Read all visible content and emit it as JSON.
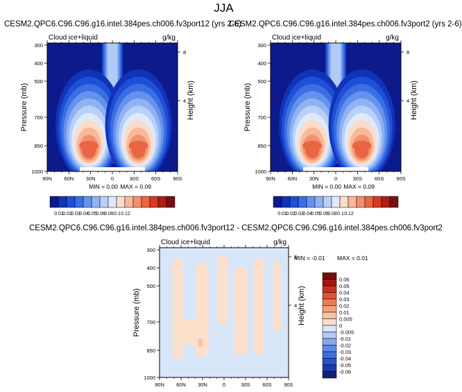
{
  "page": {
    "title": "JJA"
  },
  "colors": {
    "seq_levels": [
      "#0c1a8c",
      "#1133b8",
      "#1f4fd6",
      "#3a6fe3",
      "#6592ec",
      "#8fb2f2",
      "#b9d0f7",
      "#deeafb",
      "#fbdcc8",
      "#f8b899",
      "#f2916d",
      "#e86644",
      "#d63a22",
      "#ad1e14",
      "#7a0f0f"
    ],
    "diff_levels": [
      "#1a2070",
      "#1d3aa8",
      "#2752cf",
      "#3f6de0",
      "#5f8aea",
      "#87a8f0",
      "#b3c8f5",
      "#d8e6fa",
      "#fce0cc",
      "#f9c2a4",
      "#f6a07c",
      "#ef7a56",
      "#e45234",
      "#cc2f1c",
      "#a31711",
      "#7a0c0c"
    ]
  },
  "chart_data": [
    {
      "type": "heatmap",
      "panel": "left",
      "title": "CESM2.QPC6.C96.C96.g16.intel.384pes.ch006.fv3port12 (yrs 2-6)",
      "variable_label": "Cloud ice+liquid",
      "units": "g/kg",
      "xlabel": "",
      "ylabel": "Pressure (mb)",
      "y2label": "Height (km)",
      "x_ticks": [
        "90N",
        "60N",
        "30N",
        "0",
        "30S",
        "60S",
        "90S"
      ],
      "x_values": [
        90,
        60,
        30,
        0,
        -30,
        -60,
        -90
      ],
      "y_ticks": [
        "300",
        "400",
        "500",
        "700",
        "850",
        "1000"
      ],
      "y_values": [
        300,
        400,
        500,
        700,
        850,
        1000
      ],
      "y2_ticks": [
        "8",
        "4"
      ],
      "y2_values": [
        8,
        4
      ],
      "ylim": [
        1000,
        300
      ],
      "stats": {
        "min_label": "MIN =",
        "min": "0.00",
        "max_label": "MAX =",
        "max": "0.09"
      },
      "max_value": 0.09,
      "max_location": [
        [
          -35,
          845
        ],
        [
          35,
          845
        ]
      ]
    },
    {
      "type": "heatmap",
      "panel": "right",
      "title": "CESM2.QPC6.C96.C96.g16.intel.384pes.ch006.fv3port2 (yrs 2-6)",
      "variable_label": "Cloud ice+liquid",
      "units": "g/kg",
      "xlabel": "",
      "ylabel": "Pressure (mb)",
      "y2label": "Height (km)",
      "x_ticks": [
        "90N",
        "60N",
        "30N",
        "0",
        "30S",
        "60S",
        "90S"
      ],
      "x_values": [
        90,
        60,
        30,
        0,
        -30,
        -60,
        -90
      ],
      "y_ticks": [
        "300",
        "400",
        "500",
        "700",
        "850",
        "1000"
      ],
      "y_values": [
        300,
        400,
        500,
        700,
        850,
        1000
      ],
      "y2_ticks": [
        "8",
        "4"
      ],
      "y2_values": [
        8,
        4
      ],
      "ylim": [
        1000,
        300
      ],
      "stats": {
        "min_label": "MIN =",
        "min": "0.00",
        "max_label": "MAX =",
        "max": "0.09"
      },
      "max_value": 0.09,
      "max_location": [
        [
          -35,
          845
        ],
        [
          35,
          845
        ]
      ]
    },
    {
      "type": "heatmap",
      "panel": "difference",
      "title": "CESM2.QPC6.C96.C96.g16.intel.384pes.ch006.fv3port12 - CESM2.QPC6.C96.C96.g16.intel.384pes.ch006.fv3port2",
      "variable_label": "Cloud ice+liquid",
      "units": "g/kg",
      "xlabel": "",
      "ylabel": "Pressure (mb)",
      "y2label": "Height (km)",
      "x_ticks": [
        "90N",
        "60N",
        "30N",
        "0",
        "30S",
        "60S",
        "90S"
      ],
      "x_values": [
        90,
        60,
        30,
        0,
        -30,
        -60,
        -90
      ],
      "y_ticks": [
        "300",
        "400",
        "500",
        "700",
        "850",
        "1000"
      ],
      "y_values": [
        300,
        400,
        500,
        700,
        850,
        1000
      ],
      "y2_ticks": [
        "8",
        "4"
      ],
      "y2_values": [
        8,
        4
      ],
      "ylim": [
        1000,
        300
      ],
      "stats": {
        "min_label": "MIN =",
        "min": "-0.01",
        "max_label": "MAX =",
        "max": "0.01"
      }
    },
    {
      "type": "colorbar",
      "name": "sequential",
      "labels": [
        "0.01",
        "0.02",
        "0.03",
        "0.04",
        "0.05",
        "0.06",
        "0.08",
        "0.1",
        "0.12"
      ]
    },
    {
      "type": "colorbar",
      "name": "difference",
      "labels": [
        "0.06",
        "0.05",
        "0.04",
        "0.03",
        "0.02",
        "0.01",
        "0.005",
        "0",
        "-0.005",
        "-0.01",
        "-0.02",
        "-0.03",
        "-0.04",
        "-0.05",
        "-0.06"
      ]
    }
  ]
}
